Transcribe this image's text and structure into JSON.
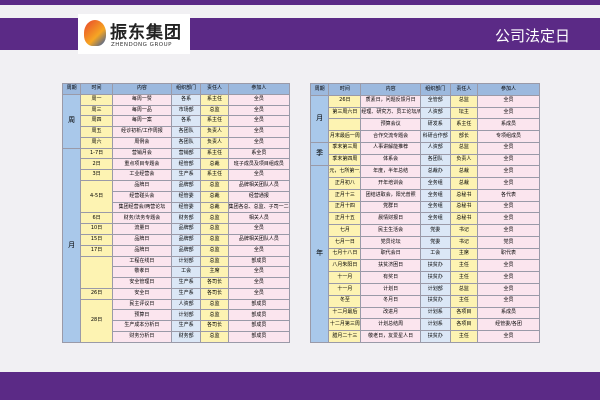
{
  "header": {
    "logo_name": "振东集团",
    "logo_sub": "ZHENDONG GROUP",
    "title": "公司法定日"
  },
  "table_left": {
    "columns": [
      "周期",
      "时间",
      "内容",
      "组织部门",
      "责任人",
      "参加人"
    ],
    "periods": [
      {
        "label": "周",
        "slots": [
          {
            "time": "周一",
            "rows": [
              [
                "每周一赞",
                "各系",
                "系主任",
                "全员"
              ]
            ]
          },
          {
            "time": "周三",
            "rows": [
              [
                "每周一品",
                "市场部",
                "总监",
                "全员"
              ]
            ]
          },
          {
            "time": "周四",
            "rows": [
              [
                "每周一案",
                "各系",
                "系主任",
                "全员"
              ]
            ]
          },
          {
            "time": "周五",
            "rows": [
              [
                "经诊初析/工作周报",
                "各团队",
                "负责人",
                "全员"
              ]
            ]
          },
          {
            "time": "周六",
            "rows": [
              [
                "周例会",
                "各团队",
                "负责人",
                "全员"
              ]
            ]
          }
        ]
      },
      {
        "label": "月",
        "slots": [
          {
            "time": "1-7日",
            "rows": [
              [
                "营销月会",
                "营销部",
                "系主任",
                "系全员"
              ]
            ]
          },
          {
            "time": "2日",
            "rows": [
              [
                "重点项目专题会",
                "经管部",
                "总裁",
                "班子成员及项目组成员"
              ]
            ]
          },
          {
            "time": "3日",
            "rows": [
              [
                "工业经营会",
                "生产系",
                "系主任",
                "全员"
              ]
            ]
          },
          {
            "time": "4-5日",
            "rows": [
              [
                "品牌日",
                "品牌部",
                "总监",
                "品牌相关团队人员"
              ],
              [
                "经营碰头会",
                "经管委",
                "总裁",
                "经营通报"
              ],
              [
                "集团经营会/两营论坛",
                "经管委",
                "总裁",
                "集团各总、总监、子司一二把手、财务负责人"
              ]
            ]
          },
          {
            "time": "6日",
            "rows": [
              [
                "财务/法务专题会",
                "财务部",
                "总监",
                "相关人员"
              ]
            ]
          },
          {
            "time": "10日",
            "rows": [
              [
                "流量日",
                "品牌部",
                "总监",
                "全员"
              ]
            ]
          },
          {
            "time": "15日",
            "rows": [
              [
                "品牌日",
                "品牌部",
                "总监",
                "品牌相关团队人员"
              ]
            ]
          },
          {
            "time": "17日",
            "rows": [
              [
                "品牌日",
                "品牌部",
                "总监",
                "全员"
              ]
            ]
          },
          {
            "rows": [
              [
                "工程在线日",
                "计划部",
                "总监",
                "部成员"
              ],
              [
                "敬孝日",
                "工会",
                "主席",
                "全员"
              ],
              [
                "安全管理日",
                "生产系",
                "各司长",
                "全员"
              ]
            ]
          },
          {
            "time": "26日",
            "rows": [
              [
                "安全日",
                "生产系",
                "各司长",
                "全员"
              ]
            ]
          },
          {
            "time": "28日",
            "rows": [
              [
                "民主评议日",
                "人资部",
                "总监",
                "部成员"
              ],
              [
                "预算日",
                "计划部",
                "总监",
                "部成员"
              ],
              [
                "生产成本分析日",
                "生产系",
                "各司长",
                "部成员"
              ],
              [
                "财务分析日",
                "财务部",
                "总监",
                "部成员"
              ]
            ]
          }
        ]
      }
    ]
  },
  "table_right": {
    "columns": [
      "周期",
      "时间",
      "内容",
      "组织部门",
      "责任人",
      "参加人"
    ],
    "periods": [
      {
        "label": "月",
        "slots": [
          {
            "time": "26日",
            "rows": [
              [
                "质素日，问题反馈月日",
                "全管部",
                "总监",
                "全员"
              ]
            ]
          },
          {
            "time": "第三周六日",
            "rows": [
              [
                "经理、研究方、员工论坛/两个月",
                "人资部",
                "坛主",
                "全员"
              ]
            ]
          },
          {
            "rows": [
              [
                "预算会议",
                "研发系",
                "系主任",
                "系成员"
              ]
            ]
          },
          {
            "time": "月末最后一周",
            "rows": [
              [
                "合作交流专题会",
                "科研合作部",
                "部长",
                "专项组成员"
              ]
            ]
          }
        ]
      },
      {
        "label": "季",
        "slots": [
          {
            "time": "季末第三周",
            "rows": [
              [
                "人事讲解能推荐",
                "人资部",
                "总监",
                "全员"
              ]
            ]
          },
          {
            "time": "季末第四周",
            "rows": [
              [
                "体系会",
                "各团队",
                "负责人",
                "全员"
              ]
            ]
          }
        ]
      },
      {
        "label": "年",
        "slots": [
          {
            "time": "元，七所第一周",
            "rows": [
              [
                "年度，半年总结",
                "总裁办",
                "总裁",
                "全员"
              ]
            ]
          },
          {
            "time": "正月初八",
            "rows": [
              [
                "开年培训会",
                "全务组",
                "总裁",
                "全员"
              ]
            ]
          },
          {
            "time": "正月十三",
            "rows": [
              [
                "团结进取会，阳光普照",
                "全务组",
                "总秘书",
                "各代表"
              ]
            ]
          },
          {
            "time": "正月十四",
            "rows": [
              [
                "党群日",
                "全务组",
                "总秘书",
                "全员"
              ]
            ]
          },
          {
            "time": "正月十五",
            "rows": [
              [
                "晨情财报日",
                "全务组",
                "总秘书",
                "全员"
              ]
            ]
          },
          {
            "time": "七月",
            "rows": [
              [
                "民主生活会",
                "党委",
                "书记",
                "全员"
              ]
            ]
          },
          {
            "time": "七月一日",
            "rows": [
              [
                "党员论坛",
                "党委",
                "书记",
                "党员"
              ]
            ]
          },
          {
            "time": "七月十八日",
            "rows": [
              [
                "职代会日",
                "工会",
                "主席",
                "职代表"
              ]
            ]
          },
          {
            "time": "八月朱阳日",
            "rows": [
              [
                "扶贫济困日",
                "扶贫办",
                "主任",
                "全员"
              ]
            ]
          },
          {
            "time": "十一月",
            "rows": [
              [
                "有奖日",
                "扶贫办",
                "主任",
                "全员"
              ]
            ]
          },
          {
            "time": "十一月",
            "rows": [
              [
                "计划日",
                "计划部",
                "总监",
                "全员"
              ]
            ]
          },
          {
            "time": "冬至",
            "rows": [
              [
                "冬月日",
                "扶贫办",
                "主任",
                "全员"
              ]
            ]
          },
          {
            "time": "十二月最后",
            "rows": [
              [
                "改进月",
                "计划系",
                "各项目",
                "系成员"
              ]
            ]
          },
          {
            "time": "十二月第三周",
            "rows": [
              [
                "计划总结周",
                "计划系",
                "各项目",
                "经管委/各团"
              ]
            ]
          },
          {
            "time": "腊月二十三",
            "rows": [
              [
                "敬老日，友爱星人日",
                "扶贫办",
                "主任",
                "全员"
              ]
            ]
          }
        ]
      }
    ]
  }
}
